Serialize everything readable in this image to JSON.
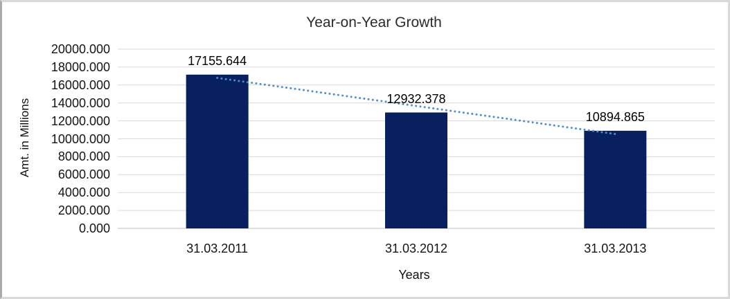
{
  "window": {
    "background": "#ffffff",
    "border_color": "#d9d9d9"
  },
  "chart_data": {
    "type": "bar",
    "title": "Year-on-Year Growth",
    "categories": [
      "31.03.2011",
      "31.03.2012",
      "31.03.2013"
    ],
    "values": [
      17155.644,
      12932.378,
      10894.865
    ],
    "data_labels": [
      "17155.644",
      "12932.378",
      "10894.865"
    ],
    "xlabel": "Years",
    "ylabel": "Amt. in Millions",
    "ylim": [
      0,
      20000
    ],
    "ytick_step": 2000,
    "ytick_decimals": 3,
    "ytick_labels": [
      "20000.000",
      "18000.000",
      "16000.000",
      "14000.000",
      "12000.000",
      "10000.000",
      "8000.000",
      "6000.000",
      "4000.000",
      "2000.000",
      "0.000"
    ],
    "grid": true,
    "legend": "none",
    "bar_color": "#082060",
    "gridline_color": "#d9d9d9",
    "axis_line_color": "#bfbfbf",
    "text_color": "#141414",
    "trendline": {
      "type": "linear",
      "style": "dotted",
      "color": "#4a8fd3"
    }
  }
}
